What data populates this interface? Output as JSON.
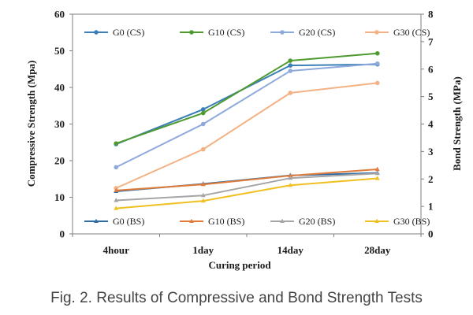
{
  "caption": "Fig. 2. Results of Compressive and Bond Strength Tests",
  "chart_data": {
    "type": "line",
    "title": "",
    "xlabel": "Curing period",
    "ylabel_left": "Compressive Strength  (Mpa)",
    "ylabel_right": "Bond Strength (MPa)",
    "categories": [
      "4hour",
      "1day",
      "14day",
      "28day"
    ],
    "ylim_left": [
      0,
      60
    ],
    "yticks_left": [
      0,
      10,
      20,
      30,
      40,
      50,
      60
    ],
    "ylim_right": [
      0,
      8
    ],
    "yticks_right": [
      0,
      1,
      2,
      3,
      4,
      5,
      6,
      7,
      8
    ],
    "grid": false,
    "legend_placement": [
      "top",
      "bottom"
    ],
    "series": [
      {
        "name": "G0 (CS)",
        "axis": "left",
        "marker": "circle",
        "color": "#3a7fb8",
        "values": [
          24.5,
          34.0,
          46.0,
          46.3
        ]
      },
      {
        "name": "G10 (CS)",
        "axis": "left",
        "marker": "circle",
        "color": "#4e9a2e",
        "values": [
          24.7,
          33.0,
          47.3,
          49.3
        ]
      },
      {
        "name": "G20 (CS)",
        "axis": "left",
        "marker": "circle",
        "color": "#8ea9db",
        "values": [
          18.2,
          30.0,
          44.5,
          46.5
        ]
      },
      {
        "name": "G30 (CS)",
        "axis": "left",
        "marker": "circle",
        "color": "#f4b183",
        "values": [
          12.5,
          23.1,
          38.5,
          41.2
        ]
      },
      {
        "name": "G0 (BS)",
        "axis": "right",
        "marker": "triangle",
        "color": "#2e6da4",
        "values": [
          1.55,
          1.82,
          2.13,
          2.22
        ]
      },
      {
        "name": "G10 (BS)",
        "axis": "right",
        "marker": "triangle",
        "color": "#e07b39",
        "values": [
          1.58,
          1.8,
          2.12,
          2.35
        ]
      },
      {
        "name": "G20 (BS)",
        "axis": "right",
        "marker": "triangle",
        "color": "#a5a5a5",
        "values": [
          1.22,
          1.4,
          2.03,
          2.2
        ]
      },
      {
        "name": "G30 (BS)",
        "axis": "right",
        "marker": "triangle",
        "color": "#f0c020",
        "values": [
          0.93,
          1.2,
          1.77,
          2.02
        ]
      }
    ]
  }
}
